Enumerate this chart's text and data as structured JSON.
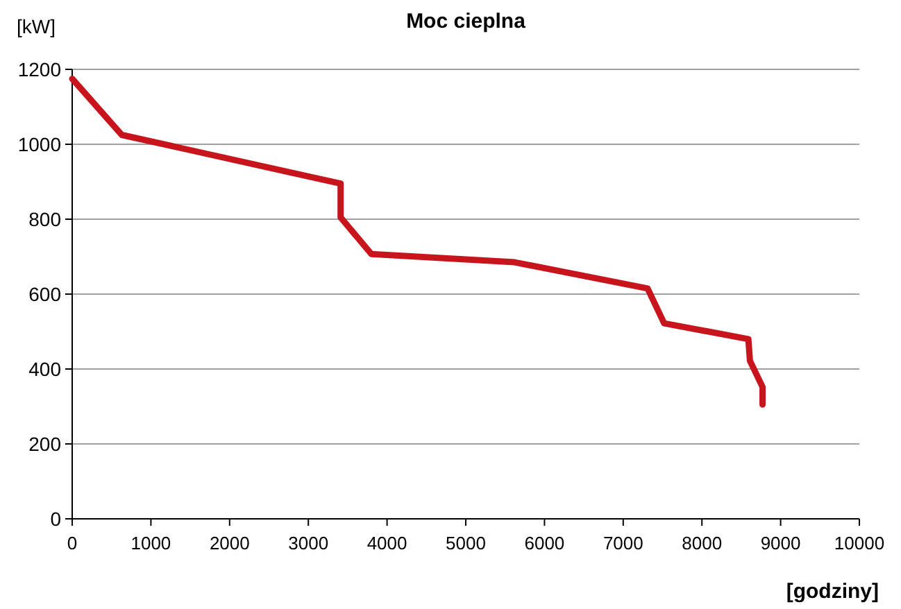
{
  "chart_data": {
    "type": "line",
    "title": "Moc cieplna",
    "xlabel": "[godziny]",
    "ylabel": "[kW]",
    "x": [
      0,
      630,
      3410,
      3410,
      3800,
      5620,
      7310,
      7520,
      8590,
      8610,
      8770,
      8770
    ],
    "series": [
      {
        "color": "#c8151d",
        "values": [
          1175,
          1025,
          895,
          805,
          707,
          685,
          615,
          522,
          480,
          422,
          352,
          305
        ]
      }
    ],
    "xlim": [
      0,
      10000
    ],
    "xticks": [
      0,
      1000,
      2000,
      3000,
      4000,
      5000,
      6000,
      7000,
      8000,
      9000,
      10000
    ],
    "ylim": [
      0,
      1200
    ],
    "yticks": [
      0,
      200,
      400,
      600,
      800,
      1000,
      1200
    ],
    "grid": "y",
    "marker": "none",
    "line_style": "solid"
  }
}
